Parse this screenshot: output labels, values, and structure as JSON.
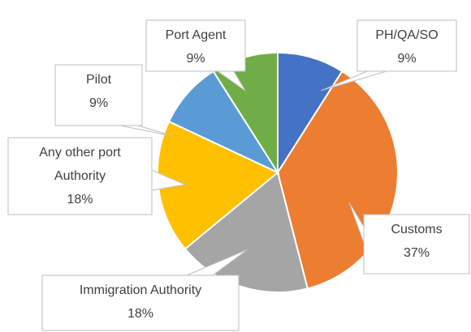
{
  "chart_data": {
    "type": "pie",
    "categories": [
      "PH/QA/SO",
      "Customs",
      "Immigration Authority",
      "Any other port Authority",
      "Pilot",
      "Port Agent"
    ],
    "values": [
      9,
      37,
      18,
      18,
      9,
      9
    ],
    "value_labels": [
      "9%",
      "37%",
      "18%",
      "18%",
      "9%",
      "9%"
    ],
    "colors": [
      "#4472c4",
      "#ed7d31",
      "#a5a5a5",
      "#ffc000",
      "#5b9bd5",
      "#70ad47"
    ]
  }
}
